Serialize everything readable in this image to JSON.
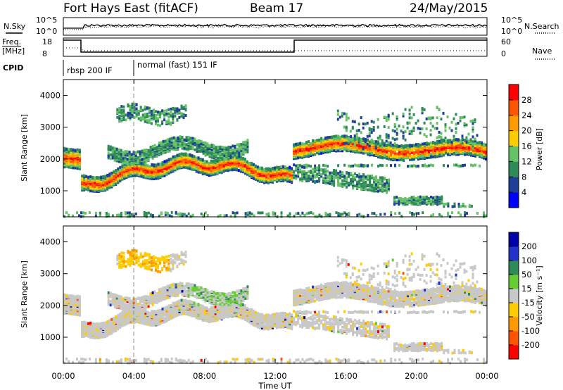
{
  "header": {
    "title": "Fort Hays East (fitACF)",
    "beam": "Beam 17",
    "date": "24/May/2015"
  },
  "top_panels": {
    "nsky_label": "N.Sky",
    "nsky_ticks": [
      "10^5",
      "10^0"
    ],
    "nsearch_label": "N.Search",
    "nsearch_ticks": [
      "10^5",
      "10^0"
    ],
    "freq_label_1": "Freq.",
    "freq_label_2": "[MHz]",
    "freq_ticks": [
      "18",
      "8"
    ],
    "nave_label": "Nave",
    "nave_ticks": [
      "60",
      "0"
    ],
    "cpid_label": "CPID",
    "cpid_modes": [
      "rbsp 200 IF",
      "normal (fast) 151 IF"
    ]
  },
  "colors": {
    "power_scale": [
      "#0000ff",
      "#1f3f9a",
      "#2e8b57",
      "#66c266",
      "#ffcc00",
      "#ff9900",
      "#ff5500",
      "#ff0000"
    ],
    "velocity_scale": [
      "#0000aa",
      "#2233cc",
      "#2e8b57",
      "#66cc33",
      "#c8c8c8",
      "#ffcc00",
      "#ff9900",
      "#ff5500",
      "#ff0000"
    ]
  },
  "chart_data": [
    {
      "type": "heatmap",
      "title": "",
      "xlabel": "Time UT",
      "ylabel": "Slant Range [km]",
      "x_tick_labels": [
        "00:00",
        "04:00",
        "08:00",
        "12:00",
        "16:00",
        "20:00",
        "00:00"
      ],
      "y_tick_labels": [
        "1000",
        "2000",
        "3000",
        "4000"
      ],
      "colorbar_label": "Power [dB]",
      "colorbar_ticks": [
        "4",
        "8",
        "12",
        "16",
        "20",
        "24",
        "28"
      ],
      "xlim_hours": [
        0,
        24
      ],
      "ylim_km": [
        180,
        4500
      ]
    },
    {
      "type": "heatmap",
      "title": "",
      "xlabel": "Time UT",
      "ylabel": "Slant Range [km]",
      "x_tick_labels": [
        "00:00",
        "04:00",
        "08:00",
        "12:00",
        "16:00",
        "20:00",
        "00:00"
      ],
      "y_tick_labels": [
        "1000",
        "2000",
        "3000",
        "4000"
      ],
      "colorbar_label": "Velocity [m s⁻¹]",
      "colorbar_ticks": [
        "200",
        "100",
        "50",
        "15",
        "-15",
        "-50",
        "-100",
        "-200"
      ],
      "xlim_hours": [
        0,
        24
      ],
      "ylim_km": [
        180,
        4500
      ]
    }
  ]
}
